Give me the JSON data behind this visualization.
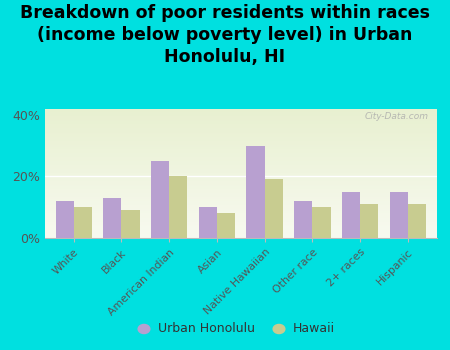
{
  "title": "Breakdown of poor residents within races\n(income below poverty level) in Urban\nHonolulu, HI",
  "categories": [
    "White",
    "Black",
    "American Indian",
    "Asian",
    "Native Hawaiian",
    "Other race",
    "2+ races",
    "Hispanic"
  ],
  "urban_honolulu": [
    12,
    13,
    25,
    10,
    30,
    12,
    15,
    15
  ],
  "hawaii": [
    10,
    9,
    20,
    8,
    19,
    10,
    11,
    11
  ],
  "uh_color": "#b8a0d0",
  "hi_color": "#c8cc90",
  "background_outer": "#00e0e0",
  "ylim": [
    0,
    42
  ],
  "yticks": [
    0,
    20,
    40
  ],
  "ytick_labels": [
    "0%",
    "20%",
    "40%"
  ],
  "title_fontsize": 12.5,
  "title_fontweight": "bold",
  "legend_uh_label": "Urban Honolulu",
  "legend_hi_label": "Hawaii",
  "watermark": "City-Data.com"
}
